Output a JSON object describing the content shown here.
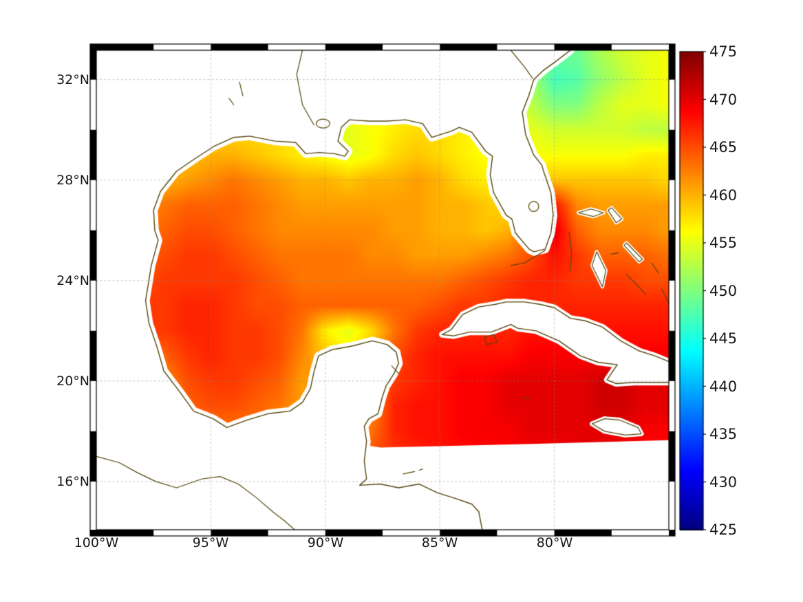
{
  "figure": {
    "background": "#ffffff",
    "axes": {
      "x_ticks": [
        {
          "lon": -100,
          "label": "100°W"
        },
        {
          "lon": -95,
          "label": "95°W"
        },
        {
          "lon": -90,
          "label": "90°W"
        },
        {
          "lon": -85,
          "label": "85°W"
        },
        {
          "lon": -80,
          "label": "80°W"
        }
      ],
      "y_ticks": [
        {
          "lat": 32,
          "label": "32°N"
        },
        {
          "lat": 28,
          "label": "28°N"
        },
        {
          "lat": 24,
          "label": "24°N"
        },
        {
          "lat": 20,
          "label": "20°N"
        },
        {
          "lat": 16,
          "label": "16°N"
        }
      ],
      "grid_lons": [
        -95,
        -90,
        -85,
        -80
      ],
      "grid_lats": [
        16,
        20,
        24,
        28,
        32
      ]
    },
    "frame": {
      "lon_interval": 2.5,
      "lat_interval": 2,
      "thickness": 9
    },
    "colorbar": {
      "min": 425,
      "max": 475,
      "ticks": [
        475,
        470,
        465,
        460,
        455,
        450,
        445,
        440,
        435,
        430,
        425
      ],
      "tick_labels": [
        "475",
        "470",
        "465",
        "460",
        "455",
        "450",
        "445",
        "440",
        "435",
        "430",
        "425"
      ],
      "colormap": "jet"
    },
    "colors": {
      "coastline": "#55440a",
      "grid": "#8a8a8a",
      "frame": "#000000",
      "land": "#ffffff",
      "nodata": "#ffffff"
    }
  },
  "chart_data": {
    "type": "heatmap",
    "title": "",
    "lon_range": [
      -100,
      -75
    ],
    "lat_range": [
      14.08,
      33.17
    ],
    "value_range": [
      425,
      475
    ],
    "colormap": "jet",
    "lon": [
      -100,
      -99,
      -98,
      -97,
      -96,
      -95,
      -94,
      -93,
      -92,
      -91,
      -90,
      -89,
      -88,
      -87,
      -86,
      -85,
      -84,
      -83,
      -82,
      -81,
      -80,
      -79,
      -78,
      -77,
      -76,
      -75
    ],
    "lat": [
      33,
      32,
      31,
      30,
      29,
      28,
      27,
      26,
      25,
      24,
      23,
      22,
      21,
      20,
      19,
      18,
      17,
      16,
      15,
      14
    ],
    "values": [
      [
        457,
        457,
        457,
        457,
        457,
        457,
        457,
        457,
        457,
        457,
        457,
        457,
        457,
        457,
        457,
        457,
        457,
        457,
        457,
        453,
        449,
        449,
        452,
        454,
        455,
        456
      ],
      [
        457,
        457,
        457,
        457,
        457,
        457,
        457,
        457,
        457,
        457,
        457,
        457,
        457,
        457,
        457,
        457,
        457,
        457,
        457,
        452,
        447,
        448,
        451,
        453,
        455,
        456
      ],
      [
        457,
        457,
        457,
        457,
        457,
        457,
        457,
        457,
        457,
        457,
        457,
        457,
        457,
        457,
        457,
        457,
        457,
        457,
        455,
        453,
        450,
        450,
        453,
        455,
        455,
        456
      ],
      [
        458,
        458,
        458,
        458,
        458,
        458,
        458,
        458,
        458,
        457,
        456,
        455,
        456,
        457,
        458,
        458,
        457,
        456,
        456,
        455,
        454,
        454,
        454,
        454,
        453,
        453
      ],
      [
        459,
        459,
        459,
        459,
        459,
        460,
        460,
        459,
        458,
        457,
        456,
        455,
        456,
        458,
        459,
        458,
        457,
        456,
        456,
        456,
        456,
        456,
        456,
        456,
        457,
        457
      ],
      [
        460,
        460,
        460,
        460,
        461,
        462,
        463,
        462,
        461,
        460,
        460,
        459,
        460,
        460,
        461,
        460,
        458,
        457,
        457,
        458,
        459,
        459,
        459,
        459,
        459,
        458
      ],
      [
        462,
        462,
        462,
        463,
        464,
        464,
        464,
        463,
        462,
        461,
        461,
        461,
        461,
        461,
        461,
        460,
        460,
        459,
        458,
        462,
        468,
        462,
        461,
        461,
        461,
        461
      ],
      [
        463,
        463,
        463,
        464,
        465,
        465,
        464,
        463,
        462,
        462,
        462,
        462,
        462,
        461,
        461,
        460,
        460,
        459,
        460,
        465,
        470,
        464,
        462,
        462,
        462,
        461
      ],
      [
        464,
        464,
        464,
        465,
        466,
        466,
        465,
        464,
        463,
        463,
        463,
        463,
        462,
        462,
        461,
        461,
        461,
        462,
        463,
        465,
        468,
        466,
        464,
        464,
        464,
        463
      ],
      [
        465,
        465,
        465,
        466,
        466,
        466,
        466,
        465,
        464,
        463,
        463,
        463,
        463,
        463,
        463,
        463,
        464,
        465,
        466,
        467,
        467,
        466,
        466,
        466,
        465,
        465
      ],
      [
        465,
        465,
        466,
        466,
        467,
        467,
        466,
        465,
        465,
        464,
        464,
        464,
        464,
        464,
        464,
        465,
        466,
        466,
        467,
        467,
        467,
        467,
        467,
        467,
        467,
        467
      ],
      [
        465,
        465,
        466,
        466,
        467,
        467,
        466,
        466,
        465,
        463,
        457,
        455,
        458,
        463,
        466,
        467,
        467,
        467,
        467,
        468,
        468,
        468,
        468,
        468,
        468,
        468
      ],
      [
        463,
        463,
        464,
        464,
        466,
        467,
        466,
        466,
        465,
        462,
        459,
        457,
        460,
        465,
        467,
        468,
        468,
        468,
        468,
        469,
        469,
        469,
        469,
        469,
        469,
        469
      ],
      [
        461,
        462,
        462,
        462,
        465,
        466,
        466,
        465,
        464,
        461,
        462,
        462,
        462,
        466,
        467,
        468,
        469,
        469,
        470,
        470,
        470,
        470,
        471,
        471,
        470,
        470
      ],
      [
        460,
        460,
        460,
        460,
        464,
        465,
        465,
        464,
        463,
        461,
        462,
        462,
        462,
        467,
        468,
        468,
        469,
        469,
        470,
        470,
        470,
        470,
        471,
        471,
        470,
        470
      ],
      [
        460,
        460,
        460,
        461,
        462,
        463,
        463,
        463,
        462,
        461,
        462,
        462,
        463,
        467,
        468,
        468,
        469,
        469,
        469,
        470,
        470,
        470,
        470,
        470,
        469,
        469
      ],
      [
        461,
        461,
        461,
        462,
        462,
        462,
        462,
        461,
        461,
        461,
        462,
        463,
        465,
        466,
        467,
        468,
        468,
        469,
        469,
        469,
        469,
        470,
        470,
        469,
        469,
        469
      ],
      [
        465,
        465,
        465,
        465,
        465,
        465,
        465,
        465,
        465,
        465,
        465,
        465,
        465,
        466,
        466,
        467,
        467,
        468,
        468,
        468,
        468,
        469,
        469,
        469,
        468,
        468
      ],
      [
        465,
        465,
        465,
        465,
        465,
        465,
        465,
        465,
        465,
        465,
        465,
        465,
        465,
        466,
        466,
        467,
        467,
        468,
        468,
        468,
        468,
        469,
        469,
        469,
        468,
        468
      ],
      [
        465,
        465,
        465,
        465,
        465,
        465,
        465,
        465,
        465,
        465,
        465,
        465,
        465,
        466,
        466,
        467,
        467,
        468,
        468,
        468,
        468,
        469,
        469,
        469,
        468,
        468
      ]
    ]
  },
  "map_overlays": {
    "mainland_coast": [
      [
        -79.3,
        33.17
      ],
      [
        -79.9,
        32.75
      ],
      [
        -80.5,
        32.35
      ],
      [
        -80.9,
        32.0
      ],
      [
        -81.1,
        31.4
      ],
      [
        -81.4,
        30.7
      ],
      [
        -81.25,
        29.8
      ],
      [
        -80.9,
        29.0
      ],
      [
        -80.55,
        28.6
      ],
      [
        -80.45,
        28.3
      ],
      [
        -80.15,
        27.5
      ],
      [
        -80.05,
        26.6
      ],
      [
        -80.15,
        25.9
      ],
      [
        -80.4,
        25.25
      ],
      [
        -80.9,
        25.15
      ],
      [
        -81.1,
        25.25
      ],
      [
        -81.7,
        25.9
      ],
      [
        -81.85,
        26.45
      ],
      [
        -82.1,
        26.6
      ],
      [
        -82.65,
        27.5
      ],
      [
        -82.8,
        28.2
      ],
      [
        -82.7,
        28.95
      ],
      [
        -83.0,
        29.15
      ],
      [
        -83.6,
        29.9
      ],
      [
        -84.15,
        30.1
      ],
      [
        -84.5,
        29.95
      ],
      [
        -85.35,
        29.7
      ],
      [
        -85.75,
        30.25
      ],
      [
        -86.5,
        30.4
      ],
      [
        -87.3,
        30.35
      ],
      [
        -88.1,
        30.35
      ],
      [
        -88.95,
        30.4
      ],
      [
        -89.3,
        30.1
      ],
      [
        -89.45,
        29.55
      ],
      [
        -89.0,
        29.15
      ],
      [
        -89.15,
        28.95
      ],
      [
        -89.6,
        29.05
      ],
      [
        -90.25,
        29.1
      ],
      [
        -90.85,
        29.05
      ],
      [
        -91.3,
        29.5
      ],
      [
        -92.2,
        29.55
      ],
      [
        -93.3,
        29.75
      ],
      [
        -94.0,
        29.7
      ],
      [
        -94.85,
        29.35
      ],
      [
        -95.7,
        28.85
      ],
      [
        -96.5,
        28.35
      ],
      [
        -97.2,
        27.55
      ],
      [
        -97.5,
        26.8
      ],
      [
        -97.45,
        26.0
      ],
      [
        -97.3,
        25.6
      ],
      [
        -97.6,
        24.6
      ],
      [
        -97.85,
        23.2
      ],
      [
        -97.7,
        22.3
      ],
      [
        -97.35,
        21.35
      ],
      [
        -97.05,
        20.4
      ],
      [
        -96.3,
        19.5
      ],
      [
        -95.75,
        18.8
      ],
      [
        -94.9,
        18.5
      ],
      [
        -94.3,
        18.15
      ],
      [
        -93.4,
        18.45
      ],
      [
        -92.5,
        18.7
      ],
      [
        -91.55,
        18.8
      ],
      [
        -91.0,
        19.15
      ],
      [
        -90.65,
        19.7
      ],
      [
        -90.5,
        20.35
      ],
      [
        -90.3,
        21.0
      ],
      [
        -89.7,
        21.25
      ],
      [
        -88.8,
        21.4
      ],
      [
        -87.95,
        21.6
      ],
      [
        -87.3,
        21.45
      ],
      [
        -86.9,
        21.15
      ],
      [
        -86.8,
        20.7
      ],
      [
        -87.0,
        20.3
      ],
      [
        -87.35,
        19.8
      ],
      [
        -87.5,
        19.4
      ],
      [
        -87.7,
        18.7
      ],
      [
        -88.1,
        18.5
      ],
      [
        -88.3,
        18.2
      ],
      [
        -88.2,
        17.6
      ],
      [
        -88.3,
        16.8
      ],
      [
        -88.2,
        16.1
      ],
      [
        -88.5,
        15.85
      ],
      [
        -87.6,
        15.9
      ],
      [
        -86.8,
        15.75
      ],
      [
        -85.9,
        15.9
      ],
      [
        -85.1,
        15.55
      ],
      [
        -84.4,
        15.35
      ],
      [
        -83.6,
        15.1
      ],
      [
        -83.3,
        14.8
      ],
      [
        -83.15,
        14.08
      ]
    ],
    "swath_mask": [
      [
        -88.6,
        17.5
      ],
      [
        -87.6,
        17.35
      ],
      [
        -81.0,
        17.5
      ],
      [
        -75.0,
        17.65
      ],
      [
        -74.5,
        17.65
      ],
      [
        -74.5,
        14.0
      ],
      [
        -88.6,
        14.0
      ]
    ],
    "cuba": [
      [
        -84.9,
        21.85
      ],
      [
        -84.5,
        22.05
      ],
      [
        -84.0,
        22.65
      ],
      [
        -83.3,
        22.95
      ],
      [
        -82.6,
        23.05
      ],
      [
        -82.1,
        23.15
      ],
      [
        -81.3,
        23.15
      ],
      [
        -80.6,
        23.05
      ],
      [
        -80.0,
        22.92
      ],
      [
        -79.3,
        22.5
      ],
      [
        -78.65,
        22.4
      ],
      [
        -77.9,
        22.15
      ],
      [
        -77.1,
        21.6
      ],
      [
        -76.3,
        21.2
      ],
      [
        -75.6,
        21.0
      ],
      [
        -74.8,
        20.7
      ],
      [
        -74.8,
        19.95
      ],
      [
        -75.6,
        19.95
      ],
      [
        -76.5,
        19.95
      ],
      [
        -77.3,
        19.9
      ],
      [
        -77.7,
        20.05
      ],
      [
        -77.25,
        20.65
      ],
      [
        -78.1,
        20.75
      ],
      [
        -78.85,
        21.0
      ],
      [
        -79.8,
        21.6
      ],
      [
        -80.8,
        22.0
      ],
      [
        -81.6,
        22.1
      ],
      [
        -81.9,
        22.25
      ],
      [
        -82.75,
        21.95
      ],
      [
        -83.7,
        21.95
      ],
      [
        -84.4,
        21.8
      ]
    ],
    "juventud": [
      [
        -83.05,
        21.75
      ],
      [
        -82.65,
        21.85
      ],
      [
        -82.5,
        21.55
      ],
      [
        -82.95,
        21.45
      ]
    ],
    "jamaica": [
      [
        -78.35,
        18.3
      ],
      [
        -77.8,
        18.5
      ],
      [
        -77.15,
        18.45
      ],
      [
        -76.35,
        18.15
      ],
      [
        -76.2,
        17.9
      ],
      [
        -76.9,
        17.85
      ],
      [
        -77.8,
        18.0
      ]
    ],
    "bahamas_islands": [
      [
        [
          -78.95,
          26.7
        ],
        [
          -78.3,
          26.55
        ],
        [
          -77.85,
          26.7
        ],
        [
          -78.4,
          26.85
        ]
      ],
      [
        [
          -77.5,
          26.9
        ],
        [
          -77.05,
          26.45
        ],
        [
          -77.3,
          26.3
        ],
        [
          -77.65,
          26.8
        ]
      ],
      [
        [
          -78.15,
          25.15
        ],
        [
          -77.75,
          24.4
        ],
        [
          -77.9,
          23.75
        ],
        [
          -78.35,
          24.6
        ]
      ],
      [
        [
          -76.85,
          25.5
        ],
        [
          -76.15,
          24.85
        ],
        [
          -76.3,
          24.75
        ],
        [
          -76.95,
          25.4
        ]
      ]
    ],
    "open_lines": [
      [
        [
          -100,
          17.0
        ],
        [
          -99.0,
          16.75
        ],
        [
          -98.2,
          16.35
        ],
        [
          -97.4,
          16.0
        ],
        [
          -96.5,
          15.75
        ],
        [
          -95.4,
          16.1
        ],
        [
          -94.6,
          16.2
        ],
        [
          -93.8,
          15.9
        ],
        [
          -93.0,
          15.35
        ],
        [
          -92.3,
          14.8
        ],
        [
          -91.8,
          14.45
        ],
        [
          -91.3,
          14.05
        ]
      ],
      [
        [
          -80.4,
          25.2
        ],
        [
          -80.75,
          25.0
        ],
        [
          -81.3,
          24.7
        ],
        [
          -81.9,
          24.6
        ]
      ],
      [
        [
          -76.85,
          24.25
        ],
        [
          -76.0,
          23.45
        ]
      ],
      [
        [
          -75.75,
          24.7
        ],
        [
          -75.45,
          24.3
        ]
      ],
      [
        [
          -75.3,
          23.65
        ],
        [
          -74.95,
          23.0
        ]
      ],
      [
        [
          -79.35,
          25.9
        ],
        [
          -79.25,
          25.1
        ],
        [
          -79.3,
          24.4
        ]
      ],
      [
        [
          -87.1,
          20.6
        ],
        [
          -86.8,
          20.3
        ]
      ],
      [
        [
          -81.45,
          19.3
        ],
        [
          -81.1,
          19.35
        ]
      ],
      [
        [
          -86.6,
          16.3
        ],
        [
          -86.1,
          16.4
        ]
      ],
      [
        [
          -85.9,
          16.45
        ],
        [
          -85.75,
          16.5
        ]
      ],
      [
        [
          -77.55,
          25.05
        ],
        [
          -77.2,
          25.1
        ]
      ],
      [
        [
          -81.9,
          33.17
        ],
        [
          -81.3,
          32.5
        ],
        [
          -80.95,
          32.05
        ]
      ],
      [
        [
          -91.0,
          33.17
        ],
        [
          -91.25,
          32.2
        ],
        [
          -91.0,
          31.0
        ],
        [
          -90.5,
          30.2
        ]
      ],
      [
        [
          -93.75,
          31.9
        ],
        [
          -93.6,
          31.35
        ]
      ],
      [
        [
          -94.2,
          31.25
        ],
        [
          -94.0,
          31.0
        ]
      ]
    ],
    "circles": [
      {
        "c": [
          -80.9,
          26.95
        ],
        "rx": 0.22,
        "ry": 0.2
      },
      {
        "c": [
          -90.1,
          30.25
        ],
        "rx": 0.3,
        "ry": 0.18
      }
    ]
  }
}
